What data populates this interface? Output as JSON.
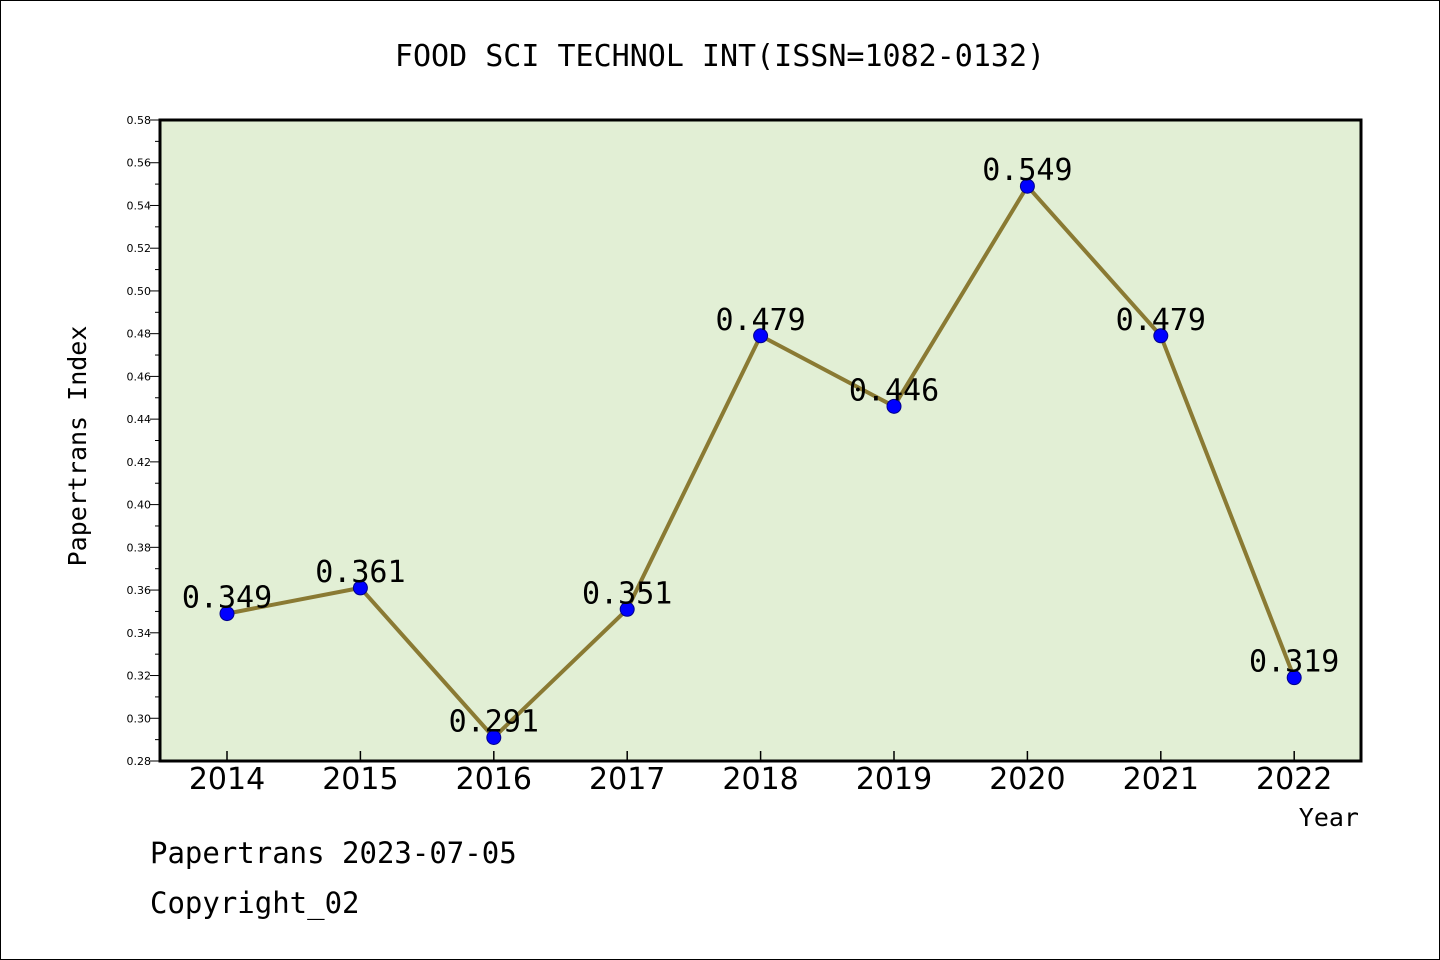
{
  "chart_data": {
    "type": "line",
    "title": "FOOD SCI TECHNOL INT(ISSN=1082-0132)",
    "xlabel": "Year",
    "ylabel": "Papertrans Index",
    "categories": [
      "2014",
      "2015",
      "2016",
      "2017",
      "2018",
      "2019",
      "2020",
      "2021",
      "2022"
    ],
    "values": [
      0.349,
      0.361,
      0.291,
      0.351,
      0.479,
      0.446,
      0.549,
      0.479,
      0.319
    ],
    "data_labels": [
      "0.349",
      "0.361",
      "0.291",
      "0.351",
      "0.479",
      "0.446",
      "0.549",
      "0.479",
      "0.319"
    ],
    "ylim": [
      0.28,
      0.58
    ],
    "y_ticks": [
      "0.28",
      "0.30",
      "0.32",
      "0.34",
      "0.36",
      "0.38",
      "0.40",
      "0.42",
      "0.44",
      "0.46",
      "0.48",
      "0.50",
      "0.52",
      "0.54",
      "0.56",
      "0.58"
    ],
    "grid": false,
    "colors": {
      "plot_background": "#e2efd5",
      "line": "#8a7a33",
      "marker": "#0000ff"
    }
  },
  "footer": {
    "source": "Papertrans 2023-07-05",
    "copyright": "Copyright_02"
  }
}
